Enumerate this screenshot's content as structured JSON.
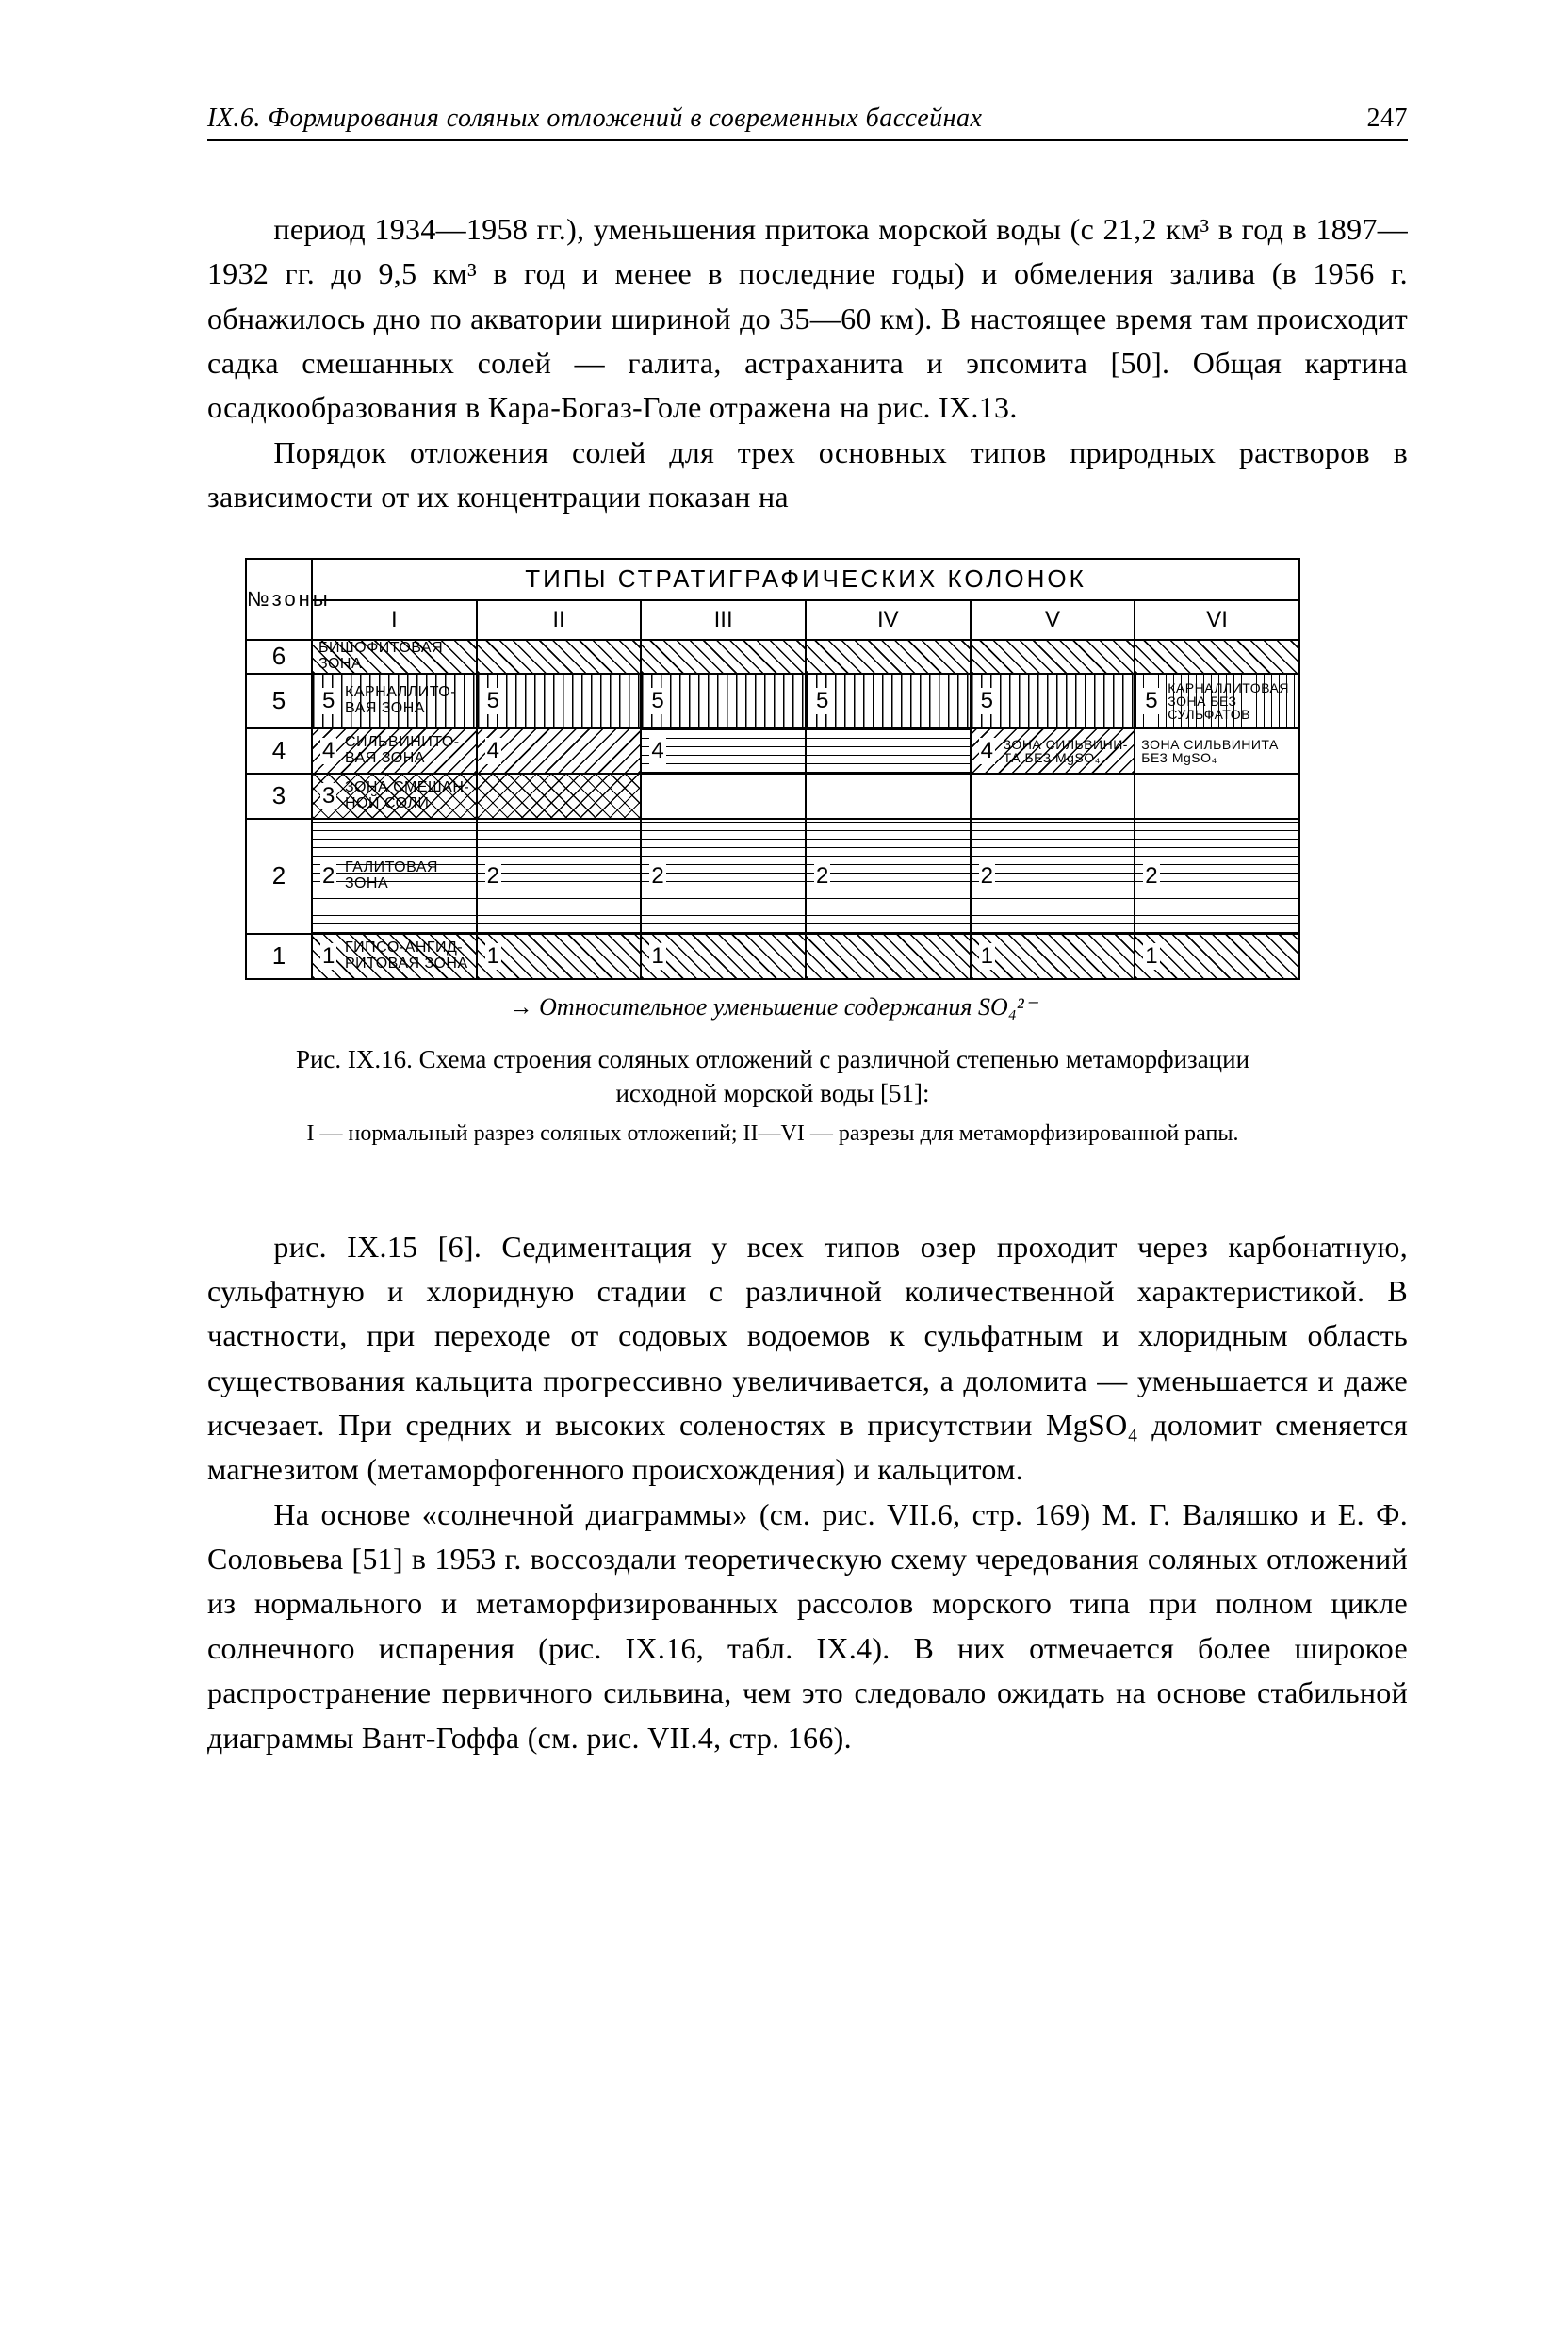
{
  "header": {
    "section": "IX.6. Формирования соляных отложений в современных бассейнах",
    "page": "247"
  },
  "paragraphs": {
    "p1": "период 1934—1958 гг.), уменьшения притока морской воды (с 21,2 км³ в год в 1897—1932 гг. до 9,5 км³ в год и менее в последние годы) и обмеления залива (в 1956 г. обнажилось дно по акватории шириной до 35—60 км). В настоящее время там происходит садка смешанных солей — галита, астраханита и эпсомита [50]. Общая картина осадкообразования в Кара-Богаз-Голе отражена на рис. IX.13.",
    "p2": "Порядок отложения солей для трех основных типов природных растворов в зависимости от их концентрации показан на",
    "p3": "рис. IX.15 [6]. Седиментация у всех типов озер проходит через карбонатную, сульфатную и хлоридную стадии с различной количественной характеристикой. В частности, при переходе от содовых водоемов к сульфатным и хлоридным область существования кальцита прогрессивно увеличивается, а доломита — уменьшается и даже исчезает. При средних и высоких соленостях в присутствии MgSO₄ доломит сменяется магнезитом (метаморфогенного происхождения) и кальцитом.",
    "p4": "На основе «солнечной диаграммы» (см. рис. VII.6, стр. 169) М. Г. Валяшко и Е. Ф. Соловьева [51] в 1953 г. воссоздали теоретическую схему чередования соляных отложений из нормального и метаморфизированных рассолов морского типа при полном цикле солнечного испарения (рис. IX.16, табл. IX.4). В них отмечается более широкое распространение первичного сильвина, чем это следовало ожидать на основе стабильной диаграммы Вант-Гоффа (см. рис. VII.4, стр. 166)."
  },
  "figure": {
    "title": "ТИПЫ   СТРАТИГРАФИЧЕСКИХ   КОЛОНОК",
    "zone_header": "№зоны",
    "columns": [
      "I",
      "II",
      "III",
      "IV",
      "V",
      "VI"
    ],
    "zones": [
      {
        "num": "6",
        "h": 34,
        "cells": [
          {
            "pat": "hatch-diag",
            "lbl": "БИШОФИТОВАЯ ЗОНА"
          },
          {
            "pat": "hatch-diag"
          },
          {
            "pat": "hatch-diag"
          },
          {
            "pat": "hatch-diag"
          },
          {
            "pat": "hatch-diag"
          },
          {
            "pat": "hatch-diag"
          }
        ]
      },
      {
        "num": "5",
        "h": 56,
        "cells": [
          {
            "pat": "hatch-vert",
            "lbl": "КАРНАЛЛИТО-ВАЯ ЗОНА",
            "n": "5"
          },
          {
            "pat": "hatch-vert",
            "n": "5"
          },
          {
            "pat": "hatch-vert",
            "n": "5"
          },
          {
            "pat": "hatch-vert",
            "n": "5"
          },
          {
            "pat": "hatch-vert",
            "n": "5"
          },
          {
            "pat": "hatch-dots",
            "lbl": "КАРНАЛЛИТОВАЯ ЗОНА БЕЗ СУЛЬФАТОВ",
            "n": "5",
            "small": true
          }
        ]
      },
      {
        "num": "4",
        "h": 46,
        "cells": [
          {
            "pat": "hatch-diag-rev",
            "lbl": "СИЛЬВИНИТО-ВАЯ ЗОНА",
            "n": "4"
          },
          {
            "pat": "hatch-diag-rev",
            "n": "4"
          },
          {
            "pat": "hatch-horiz",
            "n": "4"
          },
          {
            "pat": "hatch-horiz"
          },
          {
            "pat": "hatch-diag-rev",
            "lbl": "ЗОНА СИЛЬВИНИ-ТА БЕЗ MgSO₄",
            "n": "4",
            "small": true
          },
          {
            "pat": "hatch-none",
            "lbl": "ЗОНА СИЛЬВИНИТА БЕЗ MgSO₄",
            "small": true
          }
        ]
      },
      {
        "num": "3",
        "h": 46,
        "cells": [
          {
            "pat": "hatch-cross",
            "lbl": "ЗОНА СМЕШАН-НОЙ СОЛИ",
            "n": "3"
          },
          {
            "pat": "hatch-cross"
          },
          {
            "pat": "hatch-none"
          },
          {
            "pat": "hatch-none"
          },
          {
            "pat": "hatch-none"
          },
          {
            "pat": "hatch-none"
          }
        ]
      },
      {
        "num": "2",
        "h": 120,
        "cells": [
          {
            "pat": "hatch-horiz",
            "lbl": "ГАЛИТОВАЯ ЗОНА",
            "n": "2"
          },
          {
            "pat": "hatch-horiz",
            "n": "2"
          },
          {
            "pat": "hatch-horiz",
            "n": "2"
          },
          {
            "pat": "hatch-horiz",
            "n": "2"
          },
          {
            "pat": "hatch-horiz",
            "n": "2"
          },
          {
            "pat": "hatch-horiz",
            "n": "2"
          }
        ]
      },
      {
        "num": "1",
        "h": 46,
        "cells": [
          {
            "pat": "hatch-diag",
            "lbl": "ГИПСО-АНГИД-РИТОВАЯ ЗОНА",
            "n": "1"
          },
          {
            "pat": "hatch-diag",
            "n": "1"
          },
          {
            "pat": "hatch-diag",
            "n": "1"
          },
          {
            "pat": "hatch-diag"
          },
          {
            "pat": "hatch-diag",
            "n": "1"
          },
          {
            "pat": "hatch-diag",
            "n": "1"
          }
        ]
      }
    ],
    "arrow_caption": "→ Относительное уменьшение содержания SO₄²⁻",
    "caption": "Рис. IX.16. Схема строения соляных отложений с различной степенью метаморфизации исходной морской воды [51]:",
    "footnote": "I — нормальный разрез соляных отложений; II—VI — разрезы для метаморфизированной рапы."
  }
}
